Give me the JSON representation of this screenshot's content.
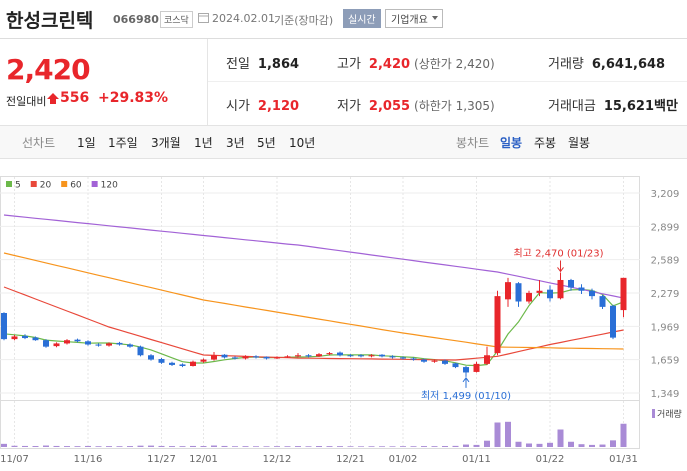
{
  "header": {
    "name": "한성크린텍",
    "code": "066980",
    "market": "코스닥",
    "date": "2024.02.01",
    "basis": "기준(장마감)",
    "realtime": "실시간",
    "company": "기업개요"
  },
  "price": {
    "current": "2,420",
    "change_label": "전일대비",
    "change": "556",
    "rate": "+29.83%"
  },
  "stats": [
    {
      "label": "전일",
      "value": "1,864"
    },
    {
      "label": "고가",
      "value": "2,420",
      "note": "(상한가 2,420)"
    },
    {
      "label": "거래량",
      "value": "6,641,648"
    },
    {
      "label": "시가",
      "value": "2,120"
    },
    {
      "label": "저가",
      "value": "2,055",
      "note": "(하한가 1,305)"
    },
    {
      "label": "거래대금",
      "value": "15,621",
      "unit": "백만"
    }
  ],
  "tabs": {
    "line_label": "선차트",
    "line_items": [
      "1일",
      "1주일",
      "3개월",
      "1년",
      "3년",
      "5년",
      "10년"
    ],
    "candle_label": "봉차트",
    "candle_items": [
      "일봉",
      "주봉",
      "월봉"
    ]
  },
  "chart_data": {
    "type": "candlestick",
    "categories": [
      null,
      "11/07",
      null,
      null,
      null,
      null,
      null,
      null,
      "11/16",
      null,
      null,
      null,
      null,
      null,
      null,
      "11/27",
      null,
      null,
      null,
      "12/01",
      null,
      null,
      null,
      null,
      null,
      null,
      "12/12",
      null,
      null,
      null,
      null,
      null,
      null,
      "12/21",
      null,
      null,
      null,
      null,
      "01/02",
      null,
      null,
      null,
      null,
      null,
      null,
      "01/11",
      null,
      null,
      null,
      null,
      null,
      null,
      "01/22",
      null,
      null,
      null,
      null,
      null,
      null,
      "01/31"
    ],
    "candles": {
      "open": [
        2093,
        1850,
        1880,
        1865,
        1840,
        1785,
        1810,
        1845,
        1830,
        1800,
        1790,
        1815,
        1800,
        1780,
        1700,
        1665,
        1630,
        1615,
        1600,
        1640,
        1660,
        1705,
        1680,
        1670,
        1690,
        1685,
        1670,
        1680,
        1690,
        1700,
        1690,
        1710,
        1725,
        1700,
        1700,
        1690,
        1705,
        1690,
        1680,
        1670,
        1660,
        1640,
        1650,
        1625,
        1590,
        1545,
        1620,
        1720,
        2220,
        2370,
        2200,
        2280,
        2310,
        2230,
        2400,
        2330,
        2300,
        2250,
        2160,
        2120
      ],
      "high": [
        2100,
        1890,
        1895,
        1875,
        1850,
        1820,
        1850,
        1855,
        1840,
        1810,
        1820,
        1825,
        1810,
        1790,
        1710,
        1675,
        1640,
        1625,
        1650,
        1670,
        1730,
        1710,
        1690,
        1700,
        1700,
        1690,
        1690,
        1700,
        1720,
        1710,
        1720,
        1730,
        1735,
        1710,
        1710,
        1710,
        1710,
        1700,
        1690,
        1680,
        1670,
        1660,
        1660,
        1630,
        1600,
        1640,
        1780,
        2300,
        2420,
        2380,
        2300,
        2400,
        2350,
        2470,
        2410,
        2360,
        2320,
        2260,
        2170,
        2420
      ],
      "low": [
        1840,
        1840,
        1850,
        1835,
        1770,
        1775,
        1800,
        1820,
        1790,
        1780,
        1780,
        1790,
        1770,
        1690,
        1650,
        1620,
        1600,
        1590,
        1595,
        1630,
        1650,
        1670,
        1660,
        1660,
        1670,
        1660,
        1665,
        1675,
        1680,
        1680,
        1685,
        1700,
        1690,
        1685,
        1680,
        1680,
        1680,
        1670,
        1660,
        1650,
        1630,
        1630,
        1610,
        1580,
        1499,
        1540,
        1610,
        1700,
        2150,
        2150,
        2180,
        2250,
        2200,
        2220,
        2300,
        2270,
        2220,
        2130,
        1850,
        2055
      ],
      "close": [
        1850,
        1875,
        1860,
        1840,
        1780,
        1810,
        1840,
        1830,
        1800,
        1790,
        1810,
        1800,
        1780,
        1700,
        1660,
        1630,
        1610,
        1600,
        1640,
        1660,
        1700,
        1680,
        1670,
        1690,
        1680,
        1670,
        1680,
        1690,
        1700,
        1690,
        1710,
        1720,
        1700,
        1695,
        1690,
        1700,
        1690,
        1680,
        1670,
        1660,
        1640,
        1650,
        1620,
        1590,
        1540,
        1620,
        1700,
        2250,
        2380,
        2200,
        2280,
        2300,
        2230,
        2400,
        2330,
        2300,
        2250,
        2150,
        1864,
        2420
      ],
      "up_color": "#e8262b",
      "down_color": "#2a6fd6"
    },
    "series": [
      {
        "name": "5",
        "color": "#6cb94a",
        "values": [
          1900,
          1890,
          1880,
          1865,
          1841,
          1833,
          1826,
          1820,
          1812,
          1814,
          1814,
          1806,
          1796,
          1776,
          1750,
          1714,
          1676,
          1640,
          1628,
          1628,
          1642,
          1658,
          1670,
          1680,
          1684,
          1678,
          1678,
          1682,
          1684,
          1686,
          1690,
          1702,
          1704,
          1703,
          1703,
          1703,
          1695,
          1691,
          1686,
          1680,
          1668,
          1660,
          1648,
          1630,
          1608,
          1604,
          1614,
          1740,
          1898,
          2010,
          2162,
          2282,
          2278,
          2282,
          2308,
          2312,
          2302,
          2266,
          2159,
          2197
        ]
      },
      {
        "name": "20",
        "color": "#e8483a",
        "values": [
          2335,
          2298,
          2261,
          2223,
          2186,
          2149,
          2112,
          2075,
          2037,
          2000,
          1963,
          1934,
          1905,
          1876,
          1847,
          1818,
          1789,
          1760,
          1731,
          1702,
          1699,
          1696,
          1693,
          1689,
          1686,
          1683,
          1680,
          1677,
          1674,
          1673,
          1672,
          1670,
          1669,
          1668,
          1667,
          1666,
          1664,
          1663,
          1662,
          1661,
          1660,
          1658,
          1657,
          1656,
          1664,
          1673,
          1681,
          1690,
          1712,
          1734,
          1756,
          1778,
          1800,
          1819,
          1839,
          1858,
          1877,
          1896,
          1916,
          1935
        ]
      },
      {
        "name": "60",
        "color": "#f7941d",
        "values": [
          2651,
          2628,
          2605,
          2582,
          2559,
          2536,
          2513,
          2490,
          2467,
          2444,
          2421,
          2398,
          2375,
          2352,
          2329,
          2306,
          2283,
          2260,
          2237,
          2214,
          2198,
          2182,
          2166,
          2149,
          2133,
          2117,
          2101,
          2085,
          2069,
          2052,
          2036,
          2020,
          2004,
          1988,
          1972,
          1955,
          1939,
          1923,
          1907,
          1893,
          1878,
          1864,
          1849,
          1835,
          1821,
          1806,
          1792,
          1777,
          1775,
          1774,
          1772,
          1771,
          1769,
          1767,
          1766,
          1764,
          1763,
          1761,
          1760,
          1758
        ]
      },
      {
        "name": "120",
        "color": "#a262d6",
        "values": [
          3004,
          2994,
          2984,
          2974,
          2964,
          2954,
          2944,
          2934,
          2924,
          2914,
          2904,
          2894,
          2884,
          2874,
          2864,
          2854,
          2844,
          2834,
          2824,
          2814,
          2804,
          2794,
          2784,
          2774,
          2764,
          2754,
          2744,
          2734,
          2725,
          2712,
          2698,
          2685,
          2672,
          2659,
          2646,
          2632,
          2619,
          2606,
          2593,
          2580,
          2566,
          2553,
          2540,
          2527,
          2514,
          2500,
          2487,
          2474,
          2454,
          2434,
          2413,
          2393,
          2373,
          2353,
          2333,
          2313,
          2292,
          2272,
          2252,
          2232
        ]
      }
    ],
    "volume": {
      "name": "거래량",
      "color": "#a98bd6",
      "ylim": [
        0,
        12000000
      ],
      "values": [
        900000,
        350000,
        300000,
        280000,
        420000,
        300000,
        260000,
        240000,
        300000,
        220000,
        250000,
        230000,
        260000,
        380000,
        400000,
        300000,
        260000,
        240000,
        300000,
        280000,
        420000,
        300000,
        220000,
        240000,
        210000,
        200000,
        230000,
        220000,
        260000,
        210000,
        280000,
        250000,
        240000,
        200000,
        190000,
        210000,
        200000,
        190000,
        230000,
        220000,
        260000,
        240000,
        280000,
        320000,
        700000,
        600000,
        1800000,
        7000000,
        7200000,
        1500000,
        1000000,
        900000,
        1200000,
        5000000,
        1500000,
        800000,
        600000,
        700000,
        1900000,
        6641648
      ]
    },
    "ylim": [
      1349,
      3209
    ],
    "yticks": [
      {
        "value": 1349,
        "label": "1,349"
      },
      {
        "value": 1659,
        "label": "1,659"
      },
      {
        "value": 1969,
        "label": "1,969"
      },
      {
        "value": 2279,
        "label": "2,279"
      },
      {
        "value": 2589,
        "label": "2,589"
      },
      {
        "value": 2899,
        "label": "2,899"
      },
      {
        "value": 3209,
        "label": "3,209"
      }
    ],
    "grid": true,
    "annotations": [
      {
        "text": "최고 2,470 (01/23)",
        "color": "#e03030"
      },
      {
        "text": "최저 1,499 (01/10)",
        "color": "#2a6fd6"
      }
    ]
  }
}
